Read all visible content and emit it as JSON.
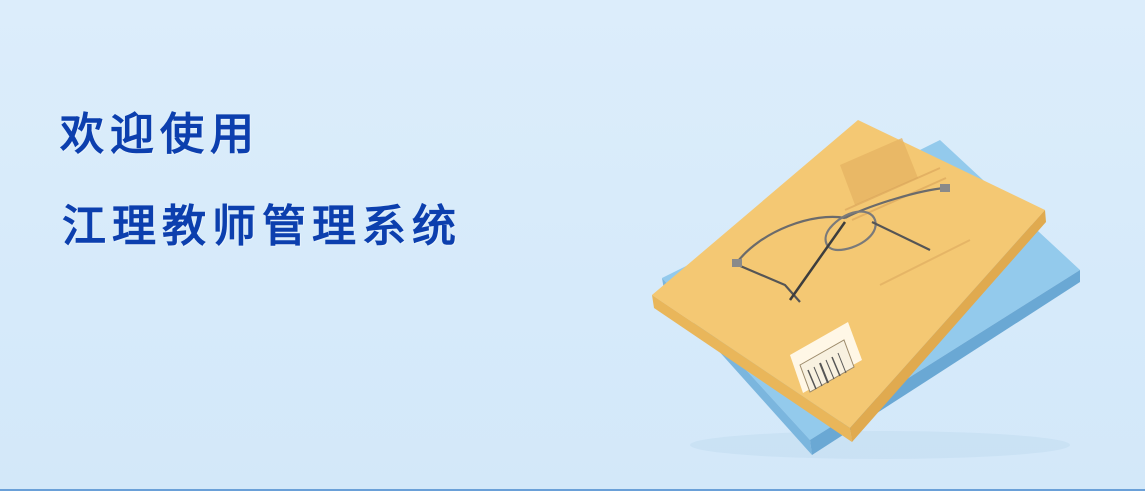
{
  "banner": {
    "welcome_text": "欢迎使用",
    "system_name": "江理教师管理系统"
  },
  "illustration": {
    "icon": "books-with-glasses-icon",
    "book_cover_color": "#f3c772",
    "book_under_color": "#8cc5ea"
  },
  "colors": {
    "background": "#d9ecfb",
    "title_text": "#0c3fae",
    "bottom_border": "#6aa0d8"
  }
}
